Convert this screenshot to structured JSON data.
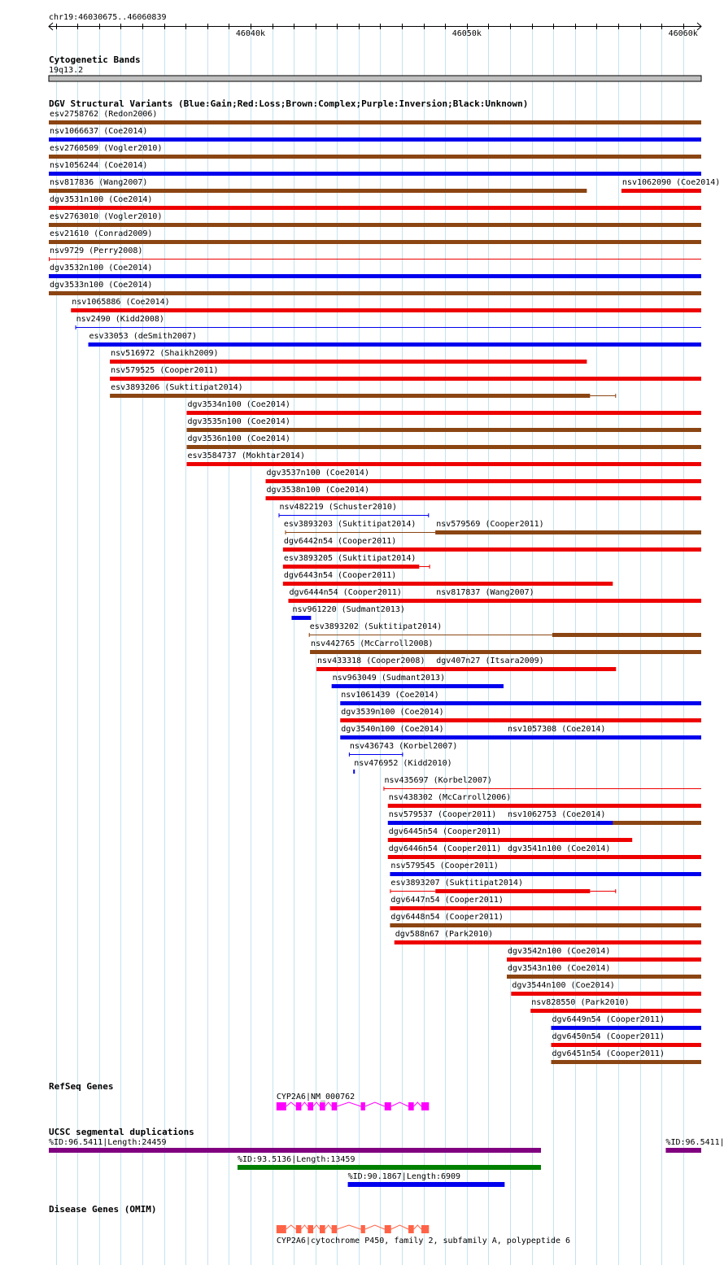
{
  "locus": "chr19:46030675..46060839",
  "ruler": {
    "start": 46030675,
    "end": 46060839,
    "ticks": [
      "46040k",
      "46050k",
      "46060k"
    ],
    "tick_positions": [
      46040000,
      46050000,
      46060000
    ]
  },
  "colors": {
    "grid": "#c6e2ef",
    "blue": "#0000ee",
    "red": "#ee0000",
    "brown": "#8b4513",
    "purple": "#800080",
    "green": "#008000",
    "magenta": "#ff00ff",
    "coral": "#ff6347",
    "band": "#c0c0c0"
  },
  "cytoband": {
    "title": "Cytogenetic Bands",
    "band": "19q13.2"
  },
  "dgv": {
    "title": "DGV Structural Variants (Blue:Gain;Red:Loss;Brown:Complex;Purple:Inversion;Black:Unknown)",
    "features": [
      {
        "label": "esv2758762 (Redon2006)",
        "color": "brown",
        "start": 46030675,
        "end": 46060839,
        "style": "thick"
      },
      {
        "label": "nsv1066637 (Coe2014)",
        "color": "blue",
        "start": 46030675,
        "end": 46060839,
        "style": "thick"
      },
      {
        "label": "esv2760509 (Vogler2010)",
        "color": "brown",
        "start": 46030675,
        "end": 46060839,
        "style": "thick"
      },
      {
        "label": "nsv1056244 (Coe2014)",
        "color": "blue",
        "start": 46030675,
        "end": 46060839,
        "style": "thick"
      },
      {
        "label": "nsv817836 (Wang2007)",
        "color": "brown",
        "start": 46030675,
        "end": 46055550,
        "style": "thick"
      },
      {
        "label": "nsv1062090 (Coe2014)",
        "color": "red",
        "start": 46057150,
        "end": 46060839,
        "style": "thick",
        "row": 4
      },
      {
        "label": "dgv3531n100 (Coe2014)",
        "color": "red",
        "start": 46030675,
        "end": 46060839,
        "style": "thick"
      },
      {
        "label": "esv2763010 (Vogler2010)",
        "color": "brown",
        "start": 46030675,
        "end": 46060839,
        "style": "thick"
      },
      {
        "label": "esv21610 (Conrad2009)",
        "color": "brown",
        "start": 46030675,
        "end": 46060839,
        "style": "thick"
      },
      {
        "label": "nsv9729 (Perry2008)",
        "color": "red",
        "start": 46030675,
        "end": 46060839,
        "style": "thin"
      },
      {
        "label": "dgv3532n100 (Coe2014)",
        "color": "blue",
        "start": 46030675,
        "end": 46060839,
        "style": "thick"
      },
      {
        "label": "dgv3533n100 (Coe2014)",
        "color": "brown",
        "start": 46030675,
        "end": 46060839,
        "style": "thick"
      },
      {
        "label": "nsv1065886 (Coe2014)",
        "color": "red",
        "start": 46031700,
        "end": 46060839,
        "style": "thick"
      },
      {
        "label": "nsv2490 (Kidd2008)",
        "color": "blue",
        "start": 46031900,
        "end": 46060839,
        "style": "thin"
      },
      {
        "label": "esv33053 (deSmith2007)",
        "color": "blue",
        "start": 46032500,
        "end": 46060839,
        "style": "thick"
      },
      {
        "label": "nsv516972 (Shaikh2009)",
        "color": "red",
        "start": 46033500,
        "end": 46055550,
        "style": "thick"
      },
      {
        "label": "nsv579525 (Cooper2011)",
        "color": "red",
        "start": 46033500,
        "end": 46060839,
        "style": "thick"
      },
      {
        "label": "esv3893206 (Suktitipat2014)",
        "color": "brown",
        "start": 46033500,
        "end": 46055700,
        "style": "thick",
        "tail_end": 46056900
      },
      {
        "label": "dgv3534n100 (Coe2014)",
        "color": "red",
        "start": 46037050,
        "end": 46060839,
        "style": "thick"
      },
      {
        "label": "dgv3535n100 (Coe2014)",
        "color": "brown",
        "start": 46037050,
        "end": 46060839,
        "style": "thick"
      },
      {
        "label": "dgv3536n100 (Coe2014)",
        "color": "brown",
        "start": 46037050,
        "end": 46060839,
        "style": "thick"
      },
      {
        "label": "esv3584737 (Mokhtar2014)",
        "color": "red",
        "start": 46037050,
        "end": 46060839,
        "style": "thick"
      },
      {
        "label": "dgv3537n100 (Coe2014)",
        "color": "red",
        "start": 46040700,
        "end": 46060839,
        "style": "thick"
      },
      {
        "label": "dgv3538n100 (Coe2014)",
        "color": "red",
        "start": 46040700,
        "end": 46060839,
        "style": "thick"
      },
      {
        "label": "nsv482219 (Schuster2010)",
        "color": "blue",
        "start": 46041300,
        "end": 46048250,
        "style": "interval"
      },
      {
        "label": "nsv579569 (Cooper2011)",
        "color": "red",
        "start": 46048550,
        "end": 46055550,
        "style": "thick",
        "row": 24
      },
      {
        "label": "esv3893203 (Suktitipat2014)",
        "color": "brown",
        "start": 46041500,
        "end": 46060839,
        "style": "gap",
        "gap_start": 46041600,
        "gap_end": 46048550
      },
      {
        "label": "dgv6442n54 (Cooper2011)",
        "color": "red",
        "start": 46041500,
        "end": 46060839,
        "style": "thick"
      },
      {
        "label": "esv3893205 (Suktitipat2014)",
        "color": "red",
        "start": 46041500,
        "end": 46047800,
        "style": "thick",
        "tail_end": 46048300
      },
      {
        "label": "nsv817837 (Wang2007)",
        "color": "brown",
        "start": 46048550,
        "end": 46055550,
        "style": "thick",
        "row": 28
      },
      {
        "label": "dgv6443n54 (Cooper2011)",
        "color": "red",
        "start": 46041500,
        "end": 46056750,
        "style": "thick"
      },
      {
        "label": "dgv6444n54 (Cooper2011)",
        "color": "red",
        "start": 46041750,
        "end": 46060839,
        "style": "thick"
      },
      {
        "label": "nsv961220 (Sudmant2013)",
        "color": "blue",
        "start": 46041900,
        "end": 46042800,
        "style": "thick"
      },
      {
        "label": "dgv407n27 (Itsara2009)",
        "color": "red",
        "start": 46048550,
        "end": 46055550,
        "style": "thick",
        "row": 32
      },
      {
        "label": "esv3893202 (Suktitipat2014)",
        "color": "brown",
        "start": 46042700,
        "end": 46060839,
        "style": "gap",
        "gap_start": 46042700,
        "gap_end": 46053950
      },
      {
        "label": "nsv442765 (McCarroll2008)",
        "color": "brown",
        "start": 46042750,
        "end": 46060839,
        "style": "thick"
      },
      {
        "label": "nsv433318 (Cooper2008)",
        "color": "red",
        "start": 46043050,
        "end": 46056900,
        "style": "thick"
      },
      {
        "label": "nsv963049 (Sudmant2013)",
        "color": "blue",
        "start": 46043750,
        "end": 46051700,
        "style": "thick"
      },
      {
        "label": "nsv1057308 (Coe2014)",
        "color": "brown",
        "start": 46051850,
        "end": 46060839,
        "style": "thick",
        "row": 36
      },
      {
        "label": "nsv1061439 (Coe2014)",
        "color": "blue",
        "start": 46044150,
        "end": 46060839,
        "style": "thick"
      },
      {
        "label": "dgv3539n100 (Coe2014)",
        "color": "red",
        "start": 46044150,
        "end": 46060839,
        "style": "thick"
      },
      {
        "label": "dgv3540n100 (Coe2014)",
        "color": "blue",
        "start": 46044150,
        "end": 46060839,
        "style": "thick"
      },
      {
        "label": "nsv436743 (Korbel2007)",
        "color": "blue",
        "start": 46044550,
        "end": 46047050,
        "style": "interval"
      },
      {
        "label": "nsv1062753 (Coe2014)",
        "color": "brown",
        "start": 46051850,
        "end": 46060839,
        "style": "thick",
        "row": 41
      },
      {
        "label": "nsv476952 (Kidd2010)",
        "color": "blue",
        "start": 46044750,
        "end": 46044800,
        "style": "dot"
      },
      {
        "label": "dgv3541n100 (Coe2014)",
        "color": "red",
        "start": 46051850,
        "end": 46060839,
        "style": "thick",
        "row": 43
      },
      {
        "label": "nsv435697 (Korbel2007)",
        "color": "red",
        "start": 46046150,
        "end": 46060839,
        "style": "thin"
      },
      {
        "label": "nsv438302 (McCarroll2006)",
        "color": "red",
        "start": 46046350,
        "end": 46060839,
        "style": "thick"
      },
      {
        "label": "nsv579537 (Cooper2011)",
        "color": "blue",
        "start": 46046350,
        "end": 46056750,
        "style": "thick"
      },
      {
        "label": "dgv6445n54 (Cooper2011)",
        "color": "red",
        "start": 46046350,
        "end": 46057650,
        "style": "thick"
      },
      {
        "label": "dgv6446n54 (Cooper2011)",
        "color": "red",
        "start": 46046350,
        "end": 46060839,
        "style": "thick"
      },
      {
        "label": "nsv579545 (Cooper2011)",
        "color": "blue",
        "start": 46046450,
        "end": 46060839,
        "style": "thick"
      },
      {
        "label": "esv3893207 (Suktitipat2014)",
        "color": "red",
        "start": 46046450,
        "end": 46055700,
        "style": "gap",
        "gap_start": 46046450,
        "gap_end": 46048550,
        "tail_end": 46056900
      },
      {
        "label": "dgv6447n54 (Cooper2011)",
        "color": "red",
        "start": 46046450,
        "end": 46060839,
        "style": "thick"
      },
      {
        "label": "dgv6448n54 (Cooper2011)",
        "color": "brown",
        "start": 46046450,
        "end": 46060839,
        "style": "thick"
      },
      {
        "label": "dgv588n67 (Park2010)",
        "color": "red",
        "start": 46046650,
        "end": 46060839,
        "style": "thick"
      },
      {
        "label": "dgv3542n100 (Coe2014)",
        "color": "red",
        "start": 46051850,
        "end": 46060839,
        "style": "thick"
      },
      {
        "label": "dgv3543n100 (Coe2014)",
        "color": "brown",
        "start": 46051850,
        "end": 46060839,
        "style": "thick"
      },
      {
        "label": "dgv3544n100 (Coe2014)",
        "color": "red",
        "start": 46052050,
        "end": 46060839,
        "style": "thick"
      },
      {
        "label": "nsv828550 (Park2010)",
        "color": "red",
        "start": 46052950,
        "end": 46060839,
        "style": "thick"
      },
      {
        "label": "dgv6449n54 (Cooper2011)",
        "color": "blue",
        "start": 46053900,
        "end": 46060839,
        "style": "thick"
      },
      {
        "label": "dgv6450n54 (Cooper2011)",
        "color": "red",
        "start": 46053900,
        "end": 46060839,
        "style": "thick"
      },
      {
        "label": "dgv6451n54 (Cooper2011)",
        "color": "brown",
        "start": 46053900,
        "end": 46060839,
        "style": "thick"
      }
    ]
  },
  "refseq": {
    "title": "RefSeq Genes",
    "gene": {
      "label": "CYP2A6|NM_000762",
      "color": "magenta",
      "start": 46041200,
      "end": 46048250,
      "exons": [
        [
          46041200,
          46041650
        ],
        [
          46042100,
          46042350
        ],
        [
          46042650,
          46042900
        ],
        [
          46043200,
          46043450
        ],
        [
          46043750,
          46044000
        ],
        [
          46045100,
          46045300
        ],
        [
          46046200,
          46046500
        ],
        [
          46047300,
          46047550
        ],
        [
          46047900,
          46048250
        ]
      ]
    }
  },
  "segdup": {
    "title": "UCSC segmental duplications",
    "features": [
      {
        "label": "%ID:96.5411|Length:24459",
        "color": "purple",
        "start": 46030675,
        "end": 46053430
      },
      {
        "label": "%ID:96.5411|",
        "color": "purple",
        "start": 46059200,
        "end": 46060839,
        "row": 0
      },
      {
        "label": "%ID:93.5136|Length:13459",
        "color": "green",
        "start": 46039400,
        "end": 46053430
      },
      {
        "label": "%ID:90.1867|Length:6909",
        "color": "blue",
        "start": 46044500,
        "end": 46051750
      }
    ]
  },
  "omim": {
    "title": "Disease Genes (OMIM)",
    "gene": {
      "label": "CYP2A6|cytochrome P450, family 2, subfamily A, polypeptide 6",
      "color": "coral",
      "start": 46041200,
      "end": 46048250,
      "exons": [
        [
          46041200,
          46041650
        ],
        [
          46042100,
          46042350
        ],
        [
          46042650,
          46042900
        ],
        [
          46043200,
          46043450
        ],
        [
          46043750,
          46044000
        ],
        [
          46045100,
          46045300
        ],
        [
          46046200,
          46046500
        ],
        [
          46047300,
          46047550
        ],
        [
          46047900,
          46048250
        ]
      ]
    }
  }
}
